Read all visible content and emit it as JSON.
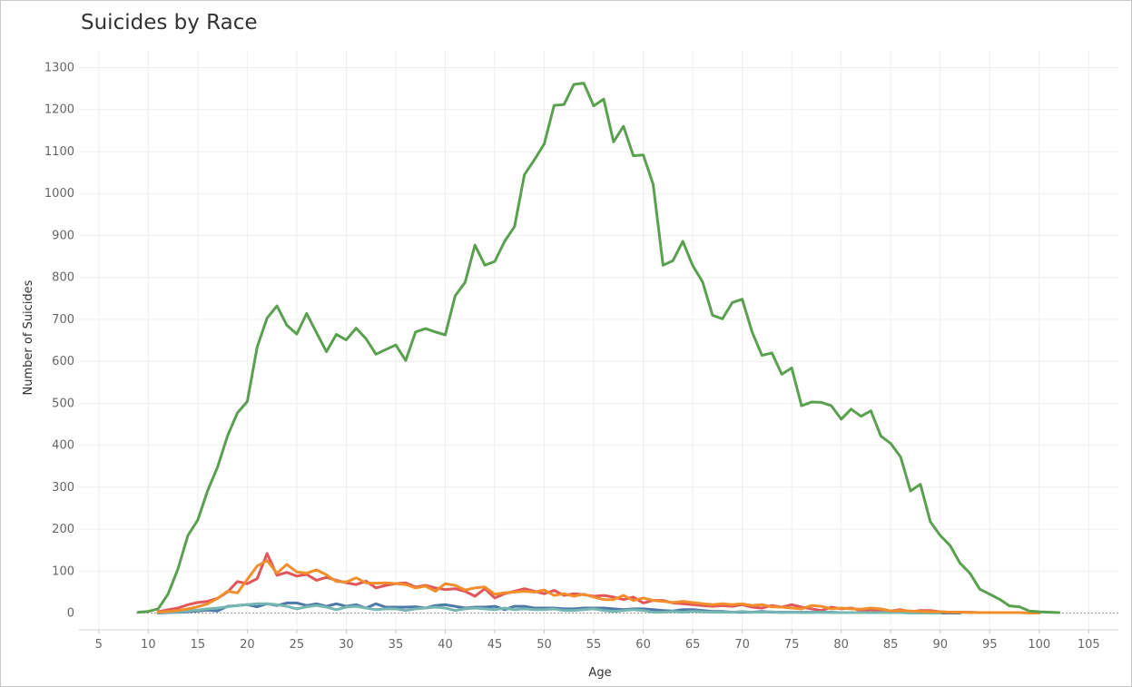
{
  "chart_data": {
    "type": "line",
    "title": "Suicides by Race",
    "xlabel": "Age",
    "ylabel": "Number of Suicides",
    "xlim": [
      3,
      108
    ],
    "ylim": [
      -40,
      1340
    ],
    "x_ticks": [
      5,
      10,
      15,
      20,
      25,
      30,
      35,
      40,
      45,
      50,
      55,
      60,
      65,
      70,
      75,
      80,
      85,
      90,
      95,
      100,
      105
    ],
    "y_ticks": [
      0,
      100,
      200,
      300,
      400,
      500,
      600,
      700,
      800,
      900,
      1000,
      1100,
      1200,
      1300
    ],
    "grid": true,
    "legend": "none",
    "colors": {
      "green": "#59a14f",
      "orange": "#f28e2b",
      "red": "#e15759",
      "blue": "#4e79a7",
      "teal": "#76b7b2"
    },
    "series": [
      {
        "color": "#59a14f",
        "x": [
          9,
          10,
          11,
          12,
          13,
          14,
          15,
          16,
          17,
          18,
          19,
          20,
          21,
          22,
          23,
          24,
          25,
          26,
          27,
          28,
          29,
          30,
          31,
          32,
          33,
          34,
          35,
          36,
          37,
          38,
          39,
          40,
          41,
          42,
          43,
          44,
          45,
          46,
          47,
          48,
          49,
          50,
          51,
          52,
          53,
          54,
          55,
          56,
          57,
          58,
          59,
          60,
          61,
          62,
          63,
          64,
          65,
          66,
          67,
          68,
          69,
          70,
          71,
          72,
          73,
          74,
          75,
          76,
          77,
          78,
          79,
          80,
          81,
          82,
          83,
          84,
          85,
          86,
          87,
          88,
          89,
          90,
          91,
          92,
          93,
          94,
          95,
          96,
          97,
          98,
          99,
          100,
          101,
          102
        ],
        "y": [
          2,
          4,
          10,
          45,
          105,
          185,
          222,
          292,
          348,
          422,
          477,
          504,
          634,
          703,
          732,
          686,
          665,
          714,
          668,
          623,
          664,
          651,
          679,
          654,
          617,
          628,
          639,
          602,
          670,
          678,
          670,
          663,
          756,
          788,
          877,
          829,
          838,
          886,
          921,
          1045,
          1080,
          1118,
          1210,
          1212,
          1260,
          1263,
          1209,
          1225,
          1123,
          1160,
          1090,
          1092,
          1022,
          829,
          840,
          886,
          828,
          789,
          710,
          701,
          740,
          748,
          670,
          614,
          620,
          569,
          584,
          494,
          503,
          502,
          494,
          462,
          486,
          469,
          482,
          422,
          404,
          372,
          291,
          307,
          218,
          185,
          161,
          119,
          95,
          57,
          45,
          33,
          17,
          15,
          5,
          3,
          2,
          1
        ]
      },
      {
        "color": "#f28e2b",
        "x": [
          11,
          12,
          13,
          14,
          15,
          16,
          17,
          18,
          19,
          20,
          21,
          22,
          23,
          24,
          25,
          26,
          27,
          28,
          29,
          30,
          31,
          32,
          33,
          34,
          35,
          36,
          37,
          38,
          39,
          40,
          41,
          42,
          43,
          44,
          45,
          46,
          47,
          48,
          49,
          50,
          51,
          52,
          53,
          54,
          55,
          56,
          57,
          58,
          59,
          60,
          61,
          62,
          63,
          64,
          65,
          66,
          67,
          68,
          69,
          70,
          71,
          72,
          73,
          74,
          75,
          76,
          77,
          78,
          79,
          80,
          81,
          82,
          83,
          84,
          85,
          86,
          87,
          88,
          89,
          90,
          91,
          92,
          93,
          94,
          95,
          96,
          97,
          98,
          99,
          100
        ],
        "y": [
          2,
          4,
          6,
          10,
          15,
          22,
          35,
          52,
          48,
          80,
          112,
          125,
          95,
          116,
          98,
          95,
          103,
          91,
          75,
          74,
          84,
          72,
          71,
          72,
          70,
          68,
          60,
          64,
          52,
          70,
          66,
          55,
          60,
          62,
          45,
          48,
          50,
          52,
          50,
          55,
          42,
          46,
          40,
          45,
          38,
          32,
          32,
          42,
          30,
          36,
          30,
          28,
          25,
          28,
          25,
          22,
          20,
          22,
          20,
          22,
          18,
          20,
          15,
          14,
          12,
          10,
          18,
          16,
          10,
          12,
          10,
          9,
          12,
          10,
          5,
          6,
          5,
          4,
          3,
          3,
          2,
          2,
          1,
          1,
          1,
          1,
          1,
          1,
          0,
          0
        ]
      },
      {
        "color": "#e15759",
        "x": [
          11,
          12,
          13,
          14,
          15,
          16,
          17,
          18,
          19,
          20,
          21,
          22,
          23,
          24,
          25,
          26,
          27,
          28,
          29,
          30,
          31,
          32,
          33,
          34,
          35,
          36,
          37,
          38,
          39,
          40,
          41,
          42,
          43,
          44,
          45,
          46,
          47,
          48,
          49,
          50,
          51,
          52,
          53,
          54,
          55,
          56,
          57,
          58,
          59,
          60,
          61,
          62,
          63,
          64,
          65,
          66,
          67,
          68,
          69,
          70,
          71,
          72,
          73,
          74,
          75,
          76,
          77,
          78,
          79,
          80,
          81,
          82,
          83,
          84,
          85,
          86,
          87,
          88,
          89,
          90,
          91,
          92,
          93,
          94
        ],
        "y": [
          3,
          8,
          12,
          20,
          25,
          28,
          35,
          50,
          75,
          70,
          82,
          142,
          90,
          97,
          88,
          92,
          78,
          85,
          78,
          72,
          68,
          76,
          60,
          66,
          70,
          72,
          62,
          66,
          60,
          56,
          58,
          52,
          40,
          58,
          36,
          46,
          52,
          58,
          52,
          46,
          54,
          42,
          46,
          44,
          40,
          42,
          38,
          32,
          38,
          24,
          30,
          30,
          24,
          22,
          20,
          18,
          16,
          18,
          16,
          20,
          14,
          12,
          18,
          14,
          20,
          14,
          10,
          6,
          14,
          10,
          12,
          6,
          8,
          6,
          5,
          8,
          3,
          6,
          6,
          3,
          2,
          2,
          2,
          1
        ]
      },
      {
        "color": "#76b7b2",
        "x": [
          11,
          12,
          13,
          14,
          15,
          16,
          17,
          18,
          19,
          20,
          21,
          22,
          23,
          24,
          25,
          26,
          27,
          28,
          29,
          30,
          31,
          32,
          33,
          34,
          35,
          36,
          37,
          38,
          39,
          40,
          41,
          42,
          43,
          44,
          45,
          46,
          47,
          48,
          49,
          50,
          51,
          52,
          53,
          54,
          55,
          56,
          57,
          58,
          59,
          60,
          61,
          62,
          63,
          64,
          65,
          66,
          67,
          68,
          69,
          70,
          71,
          72,
          73,
          74,
          75,
          76,
          77,
          78,
          79,
          80,
          81,
          82,
          83,
          84,
          85,
          86,
          87,
          88,
          89,
          90
        ],
        "y": [
          1,
          2,
          3,
          5,
          7,
          10,
          12,
          15,
          18,
          20,
          22,
          22,
          20,
          16,
          10,
          15,
          18,
          14,
          8,
          14,
          16,
          12,
          8,
          10,
          10,
          6,
          10,
          12,
          14,
          12,
          6,
          10,
          12,
          10,
          8,
          12,
          8,
          10,
          8,
          8,
          10,
          6,
          6,
          8,
          10,
          6,
          4,
          6,
          8,
          6,
          2,
          2,
          4,
          2,
          4,
          3,
          2,
          2,
          2,
          4,
          2,
          2,
          3,
          1,
          2,
          1,
          1,
          2,
          1,
          1,
          1,
          1,
          1,
          1,
          1,
          1,
          0,
          0,
          0,
          0
        ]
      },
      {
        "color": "#4e79a7",
        "x": [
          11,
          12,
          13,
          14,
          15,
          16,
          17,
          18,
          19,
          20,
          21,
          22,
          23,
          24,
          25,
          26,
          27,
          28,
          29,
          30,
          31,
          32,
          33,
          34,
          35,
          36,
          37,
          38,
          39,
          40,
          41,
          42,
          43,
          44,
          45,
          46,
          47,
          48,
          49,
          50,
          51,
          52,
          53,
          54,
          55,
          56,
          57,
          58,
          59,
          60,
          61,
          62,
          63,
          64,
          65,
          66,
          67,
          68,
          69,
          70,
          71,
          72,
          73,
          74,
          75,
          76,
          77,
          78,
          79,
          80,
          81,
          82,
          83,
          84,
          85,
          86,
          87,
          88,
          89,
          90,
          91,
          92
        ],
        "y": [
          0,
          1,
          2,
          3,
          5,
          7,
          5,
          16,
          18,
          20,
          15,
          22,
          18,
          24,
          24,
          18,
          22,
          16,
          22,
          16,
          20,
          12,
          22,
          14,
          14,
          14,
          15,
          12,
          18,
          20,
          16,
          12,
          14,
          14,
          16,
          8,
          16,
          16,
          12,
          12,
          12,
          10,
          10,
          12,
          12,
          12,
          10,
          8,
          10,
          10,
          8,
          6,
          5,
          8,
          8,
          6,
          4,
          4,
          2,
          2,
          2,
          4,
          2,
          2,
          2,
          2,
          2,
          2,
          2,
          1,
          1,
          1,
          1,
          1,
          1,
          1,
          1,
          1,
          1,
          0,
          0,
          0
        ]
      }
    ]
  }
}
